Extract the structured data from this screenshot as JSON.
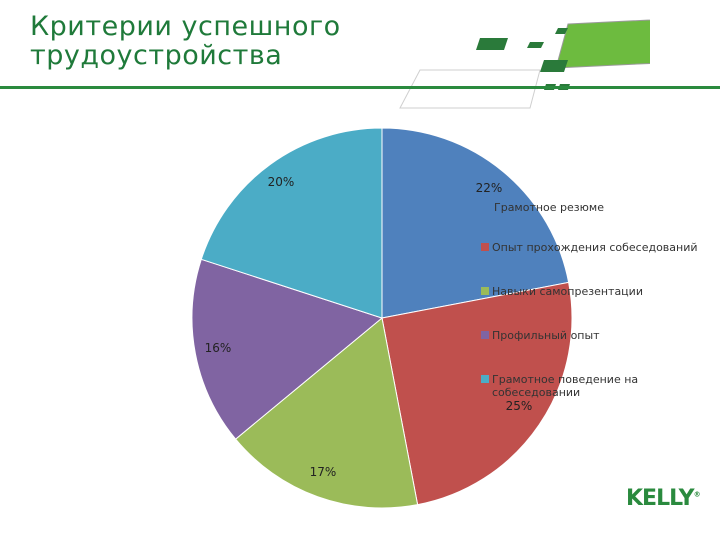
{
  "page": {
    "title_line1": "Критерии успешного",
    "title_line2": "трудоустройства",
    "logo": "KELLY",
    "logo_mark": "®"
  },
  "colors": {
    "brand_green": "#2a8a3e",
    "slices": [
      "#4f81bd",
      "#c0504d",
      "#9bbb59",
      "#8064a2",
      "#4bacc6"
    ]
  },
  "chart_data": {
    "type": "pie",
    "categories": [
      "Грамотное резюме",
      "Опыт прохождения собеседований",
      "Навыки самопрезентации",
      "Профильный опыт",
      "Грамотное поведение на собеседовании"
    ],
    "values": [
      22,
      25,
      17,
      16,
      20
    ],
    "labels": [
      "22%",
      "25%",
      "17%",
      "16%",
      "20%"
    ],
    "legend": "right"
  }
}
